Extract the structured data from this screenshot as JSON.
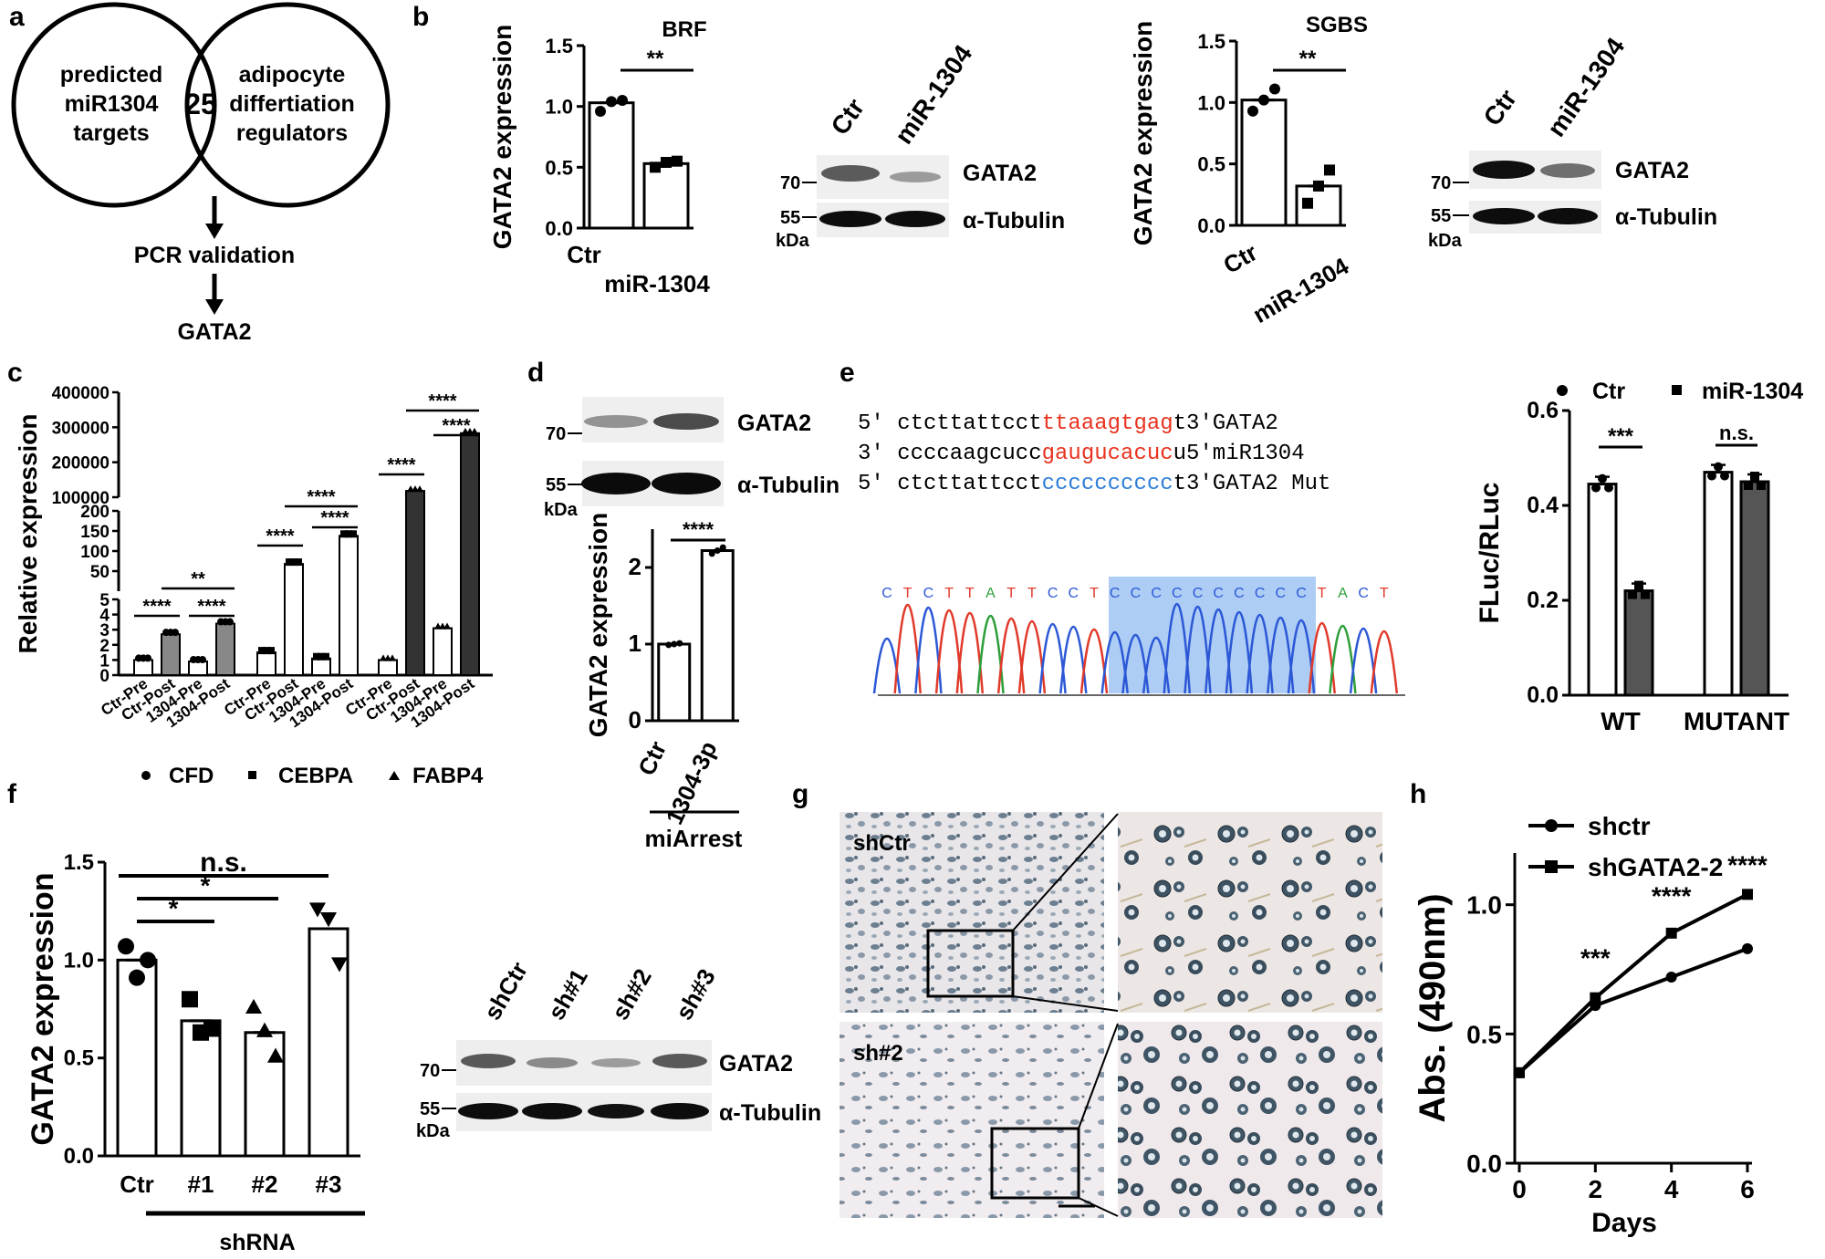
{
  "panels": {
    "a": {
      "label": "a",
      "left_circle": [
        "predicted",
        "miR1304",
        "targets"
      ],
      "overlap": "25",
      "right_circle": [
        "adipocyte",
        "differtiation",
        "regulators"
      ],
      "step1": "PCR validation",
      "step2": "GATA2"
    },
    "b": {
      "label": "b",
      "blot_brf": {
        "lanes": [
          "Ctr",
          "miR-1304"
        ],
        "rows": [
          "GATA2",
          "α-Tubulin"
        ],
        "markers": [
          "70",
          "55"
        ],
        "unit": "kDa"
      },
      "blot_sgbs": {
        "lanes": [
          "Ctr",
          "miR-1304"
        ],
        "rows": [
          "GATA2",
          "α-Tubulin"
        ],
        "markers": [
          "70",
          "55"
        ],
        "unit": "kDa"
      }
    },
    "c": {
      "label": "c",
      "legend": [
        "CFD",
        "CEBPA",
        "FABP4"
      ]
    },
    "d": {
      "label": "d",
      "blot": {
        "rows": [
          "GATA2",
          "α-Tubulin"
        ],
        "markers": [
          "70",
          "55"
        ],
        "unit": "kDa"
      },
      "group_label": "miArrest"
    },
    "e": {
      "label": "e",
      "seq": [
        {
          "prefix": "5′",
          "pre": "ctcttattcct",
          "mid": "ttaaagtgag",
          "post": "t3′",
          "name": "GATA2"
        },
        {
          "prefix": "3′",
          "pre": "ccccaagcucc",
          "mid": "gaugucacuc",
          "post": "u5′",
          "name": "miR1304"
        },
        {
          "prefix": "5′",
          "pre": "ctcttattcct",
          "mid": "cccccccccc",
          "post": "t3′",
          "name": "GATA2 Mut"
        }
      ],
      "chromatogram_bases": [
        "C",
        "T",
        "C",
        "T",
        "T",
        "A",
        "T",
        "T",
        "C",
        "C",
        "T",
        "C",
        "C",
        "C",
        "C",
        "C",
        "C",
        "C",
        "C",
        "C",
        "C",
        "T",
        "A",
        "C",
        "T"
      ],
      "colors": {
        "highlight_red": "#e8321e",
        "mut_blue": "#2f7fd8",
        "box": "#aecdf5"
      }
    },
    "f": {
      "label": "f",
      "group_label": "shRNA",
      "blot": {
        "lanes": [
          "shCtr",
          "sh#1",
          "sh#2",
          "sh#3"
        ],
        "rows": [
          "GATA2",
          "α-Tubulin"
        ],
        "markers": [
          "70",
          "55"
        ],
        "unit": "kDa"
      }
    },
    "g": {
      "label": "g",
      "images": [
        "shCtr",
        "sh#2"
      ]
    },
    "h": {
      "label": "h"
    }
  },
  "chart_data": [
    {
      "id": "b1",
      "type": "bar",
      "title": "BRF",
      "categories": [
        "Ctr",
        "miR-1304"
      ],
      "values": [
        1.03,
        0.53
      ],
      "points": [
        [
          0.96,
          1.04,
          1.05
        ],
        [
          0.5,
          0.54,
          0.55
        ]
      ],
      "ylabel": "GATA2 expression",
      "ylim": [
        0,
        1.5
      ],
      "yticks": [
        "0.0",
        "0.5",
        "1.0",
        "1.5"
      ],
      "annotation": "**"
    },
    {
      "id": "b2",
      "type": "bar",
      "title": "SGBS",
      "categories": [
        "Ctr",
        "miR-1304"
      ],
      "values": [
        1.02,
        0.32
      ],
      "points": [
        [
          0.93,
          1.02,
          1.11
        ],
        [
          0.18,
          0.32,
          0.45
        ]
      ],
      "ylabel": "GATA2 expression",
      "ylim": [
        0,
        1.5
      ],
      "yticks": [
        "0.0",
        "0.5",
        "1.0",
        "1.5"
      ],
      "annotation": "**"
    },
    {
      "id": "c",
      "type": "bar",
      "ylabel": "Relative expression",
      "categories": [
        "Ctr-Pre",
        "Ctr-Post",
        "1304-Pre",
        "1304-Post"
      ],
      "series": [
        {
          "name": "CFD",
          "values": [
            1.0,
            2.7,
            0.9,
            3.4
          ]
        },
        {
          "name": "CEBPA",
          "values": [
            1.5,
            68,
            1.1,
            138
          ]
        },
        {
          "name": "FABP4",
          "values": [
            1.0,
            118000,
            3.1,
            283000
          ]
        }
      ],
      "yticks_low": [
        "0",
        "1",
        "2",
        "3",
        "4",
        "5"
      ],
      "yticks_mid": [
        "50",
        "100",
        "150",
        "200"
      ],
      "yticks_high": [
        "100000",
        "200000",
        "300000",
        "400000"
      ],
      "annotations": [
        "****",
        "**",
        "****",
        "****",
        "****",
        "****",
        "****",
        "****",
        "****"
      ]
    },
    {
      "id": "d",
      "type": "bar",
      "categories": [
        "Ctr",
        "1304-3p"
      ],
      "values": [
        1.0,
        2.22
      ],
      "ylabel": "GATA2 expression",
      "ylim": [
        0,
        2.5
      ],
      "yticks": [
        "0",
        "1",
        "2"
      ],
      "annotation": "****"
    },
    {
      "id": "e",
      "type": "bar",
      "categories": [
        "WT",
        "MUTANT"
      ],
      "ylabel": "FLuc/RLuc",
      "ylim": [
        0,
        0.6
      ],
      "yticks": [
        "0.0",
        "0.2",
        "0.4",
        "0.6"
      ],
      "series": [
        {
          "name": "Ctr",
          "values": [
            0.445,
            0.47
          ]
        },
        {
          "name": "miR-1304",
          "values": [
            0.22,
            0.45
          ]
        }
      ],
      "annotations": [
        "***",
        "n.s."
      ]
    },
    {
      "id": "f",
      "type": "bar",
      "categories": [
        "Ctr",
        "#1",
        "#2",
        "#3"
      ],
      "values": [
        1.0,
        0.69,
        0.63,
        1.16
      ],
      "points": [
        [
          1.07,
          0.91,
          1.0
        ],
        [
          0.8,
          0.63,
          0.65
        ],
        [
          0.76,
          0.64,
          0.51
        ],
        [
          1.26,
          1.21,
          0.98
        ]
      ],
      "ylabel": "GATA2 expression",
      "ylim": [
        0,
        1.5
      ],
      "yticks": [
        "0.0",
        "0.5",
        "1.0",
        "1.5"
      ],
      "annotations": [
        "*",
        "*",
        "n.s."
      ]
    },
    {
      "id": "h",
      "type": "line",
      "xlabel": "Days",
      "ylabel": "Abs. (490nm)",
      "x": [
        0,
        2,
        4,
        6
      ],
      "xticks": [
        "0",
        "2",
        "4",
        "6"
      ],
      "yticks": [
        "0.0",
        "0.5",
        "1.0"
      ],
      "ylim": [
        0,
        1.2
      ],
      "series": [
        {
          "name": "shctr",
          "values": [
            0.35,
            0.61,
            0.72,
            0.83
          ]
        },
        {
          "name": "shGATA2-2",
          "values": [
            0.35,
            0.64,
            0.89,
            1.04
          ]
        }
      ],
      "annotations": [
        "***",
        "****",
        "****"
      ]
    }
  ]
}
